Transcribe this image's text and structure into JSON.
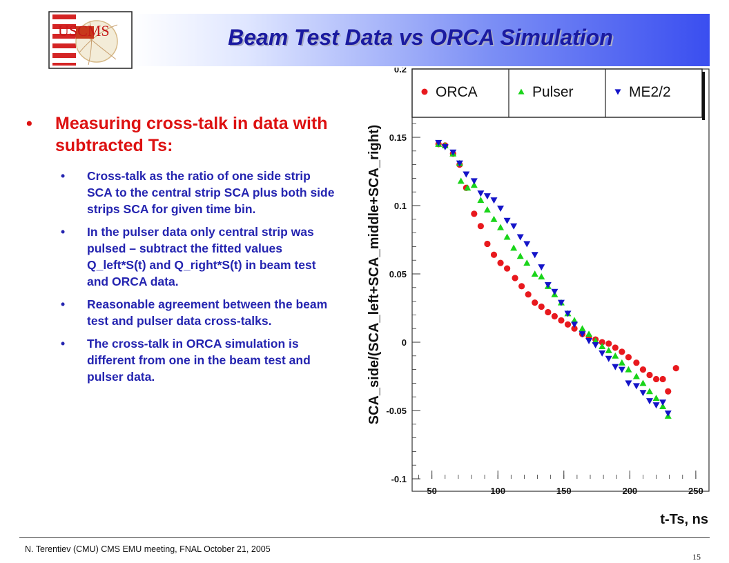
{
  "header": {
    "title": "Beam Test Data vs ORCA Simulation",
    "logo_text": "USCMS"
  },
  "content": {
    "main_bullet": "Measuring cross-talk in data with subtracted Ts:",
    "sub_bullets": [
      "Cross-talk as the ratio of one side strip SCA to the central strip SCA plus both side strips SCA for given time bin.",
      "In the pulser data only central strip was pulsed – subtract the fitted values Q_left*S(t) and Q_right*S(t) in beam test and ORCA data.",
      "Reasonable agreement between the beam test and pulser data cross-talks.",
      "The cross-talk in ORCA simulation is different from one in the beam test and pulser data."
    ]
  },
  "footer": {
    "text": "N. Terentiev  (CMU)  CMS EMU meeting,  FNAL  October 21, 2005",
    "page": "15"
  },
  "colors": {
    "title": "#1a1aa0",
    "main_bullet": "#dd1111",
    "sub_bullets": "#2424b0",
    "orca": "#e8191e",
    "pulser": "#19d419",
    "me22": "#1414c8"
  },
  "chart_data": {
    "type": "scatter",
    "xlabel": "t-Ts, ns",
    "ylabel": "SCA_side/(SCA_left+SCA_middle+SCA_right)",
    "xlim": [
      35,
      260
    ],
    "ylim": [
      -0.1,
      0.2
    ],
    "xticks": [
      "50",
      "100",
      "150",
      "200",
      "250"
    ],
    "yticks": [
      "-0.1",
      "-0.05",
      "0",
      "0.05",
      "0.1",
      "0.15",
      "0.2"
    ],
    "legend_position": "top",
    "series": [
      {
        "name": "ORCA",
        "marker": "circle",
        "color": "#e8191e",
        "points": [
          [
            55,
            0.145
          ],
          [
            60,
            0.144
          ],
          [
            66,
            0.138
          ],
          [
            71,
            0.13
          ],
          [
            76,
            0.113
          ],
          [
            82,
            0.094
          ],
          [
            87,
            0.085
          ],
          [
            92,
            0.072
          ],
          [
            97,
            0.064
          ],
          [
            102,
            0.058
          ],
          [
            107,
            0.054
          ],
          [
            113,
            0.047
          ],
          [
            118,
            0.041
          ],
          [
            123,
            0.035
          ],
          [
            128,
            0.029
          ],
          [
            133,
            0.026
          ],
          [
            138,
            0.022
          ],
          [
            143,
            0.019
          ],
          [
            148,
            0.016
          ],
          [
            153,
            0.013
          ],
          [
            158,
            0.01
          ],
          [
            164,
            0.006
          ],
          [
            169,
            0.004
          ],
          [
            174,
            0.002
          ],
          [
            179,
            0.0
          ],
          [
            184,
            -0.001
          ],
          [
            189,
            -0.004
          ],
          [
            194,
            -0.007
          ],
          [
            199,
            -0.011
          ],
          [
            205,
            -0.015
          ],
          [
            210,
            -0.02
          ],
          [
            215,
            -0.024
          ],
          [
            220,
            -0.027
          ],
          [
            225,
            -0.027
          ],
          [
            229,
            -0.036
          ],
          [
            235,
            -0.019
          ]
        ]
      },
      {
        "name": "Pulser",
        "marker": "triangle-up",
        "color": "#19d419",
        "points": [
          [
            55,
            0.145
          ],
          [
            60,
            0.144
          ],
          [
            66,
            0.138
          ],
          [
            71,
            0.131
          ],
          [
            72,
            0.118
          ],
          [
            77,
            0.113
          ],
          [
            82,
            0.115
          ],
          [
            87,
            0.104
          ],
          [
            92,
            0.097
          ],
          [
            97,
            0.09
          ],
          [
            102,
            0.084
          ],
          [
            107,
            0.077
          ],
          [
            112,
            0.069
          ],
          [
            117,
            0.063
          ],
          [
            122,
            0.058
          ],
          [
            128,
            0.05
          ],
          [
            133,
            0.048
          ],
          [
            138,
            0.041
          ],
          [
            143,
            0.035
          ],
          [
            148,
            0.029
          ],
          [
            153,
            0.021
          ],
          [
            158,
            0.016
          ],
          [
            164,
            0.01
          ],
          [
            169,
            0.006
          ],
          [
            174,
            0.001
          ],
          [
            179,
            -0.003
          ],
          [
            184,
            -0.006
          ],
          [
            189,
            -0.01
          ],
          [
            194,
            -0.015
          ],
          [
            199,
            -0.02
          ],
          [
            205,
            -0.025
          ],
          [
            210,
            -0.03
          ],
          [
            215,
            -0.036
          ],
          [
            220,
            -0.041
          ],
          [
            225,
            -0.047
          ],
          [
            229,
            -0.054
          ]
        ]
      },
      {
        "name": "ME2/2",
        "marker": "triangle-down",
        "color": "#1414c8",
        "points": [
          [
            55,
            0.146
          ],
          [
            60,
            0.143
          ],
          [
            66,
            0.139
          ],
          [
            71,
            0.131
          ],
          [
            76,
            0.123
          ],
          [
            82,
            0.118
          ],
          [
            87,
            0.109
          ],
          [
            92,
            0.107
          ],
          [
            97,
            0.104
          ],
          [
            102,
            0.098
          ],
          [
            107,
            0.089
          ],
          [
            112,
            0.085
          ],
          [
            117,
            0.077
          ],
          [
            122,
            0.072
          ],
          [
            128,
            0.064
          ],
          [
            133,
            0.055
          ],
          [
            138,
            0.042
          ],
          [
            143,
            0.037
          ],
          [
            148,
            0.029
          ],
          [
            153,
            0.021
          ],
          [
            158,
            0.013
          ],
          [
            164,
            0.006
          ],
          [
            169,
            0.001
          ],
          [
            174,
            -0.002
          ],
          [
            179,
            -0.008
          ],
          [
            184,
            -0.012
          ],
          [
            189,
            -0.018
          ],
          [
            194,
            -0.02
          ],
          [
            199,
            -0.03
          ],
          [
            205,
            -0.032
          ],
          [
            210,
            -0.037
          ],
          [
            215,
            -0.043
          ],
          [
            220,
            -0.046
          ],
          [
            225,
            -0.044
          ],
          [
            229,
            -0.052
          ]
        ]
      }
    ]
  }
}
